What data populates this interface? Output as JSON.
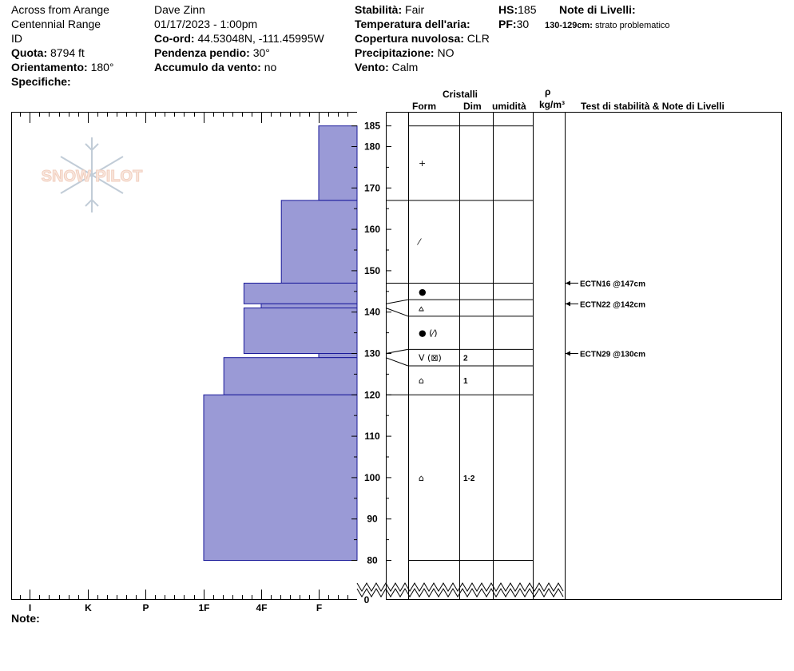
{
  "header": {
    "location_name": "Across from Arange",
    "range": "Centennial Range",
    "state": "ID",
    "elevation_label": "Quota:",
    "elevation_value": "8794 ft",
    "aspect_label": "Orientamento:",
    "aspect_value": "180°",
    "specifics_label": "Specifiche:",
    "observer": "Dave Zinn",
    "datetime": "01/17/2023 - 1:00pm",
    "coord_label": "Co-ord:",
    "coord_value": "44.53048N, -111.45995W",
    "slope_label": "Pendenza pendio:",
    "slope_value": "30°",
    "wind_loading_label": "Accumulo da vento:",
    "wind_loading_value": "no",
    "stability_label": "Stabilità:",
    "stability_value": "Fair",
    "air_temp_label": "Temperatura dell'aria:",
    "cloud_label": "Copertura nuvolosa:",
    "cloud_value": "CLR",
    "precip_label": "Precipitazione:",
    "precip_value": "NO",
    "wind_label": "Vento:",
    "wind_value": "Calm",
    "hs_label": "HS:",
    "hs_value": "185",
    "pf_label": "PF:",
    "pf_value": "30",
    "layer_notes_label": "Note di Livelli:",
    "layer_note_range": "130-129cm:",
    "layer_note_text": "strato problematico"
  },
  "logo_text": "SNOW PILOT",
  "columns": {
    "crystals": "Cristalli",
    "form": "Form",
    "size": "Dim",
    "moisture": "umidità",
    "rho": "ρ",
    "density_unit": "kg/m³",
    "tests": "Test di stabilità & Note di Livelli"
  },
  "hardness_axis": [
    "I",
    "K",
    "P",
    "1F",
    "4F",
    "F"
  ],
  "notes_label": "Note:",
  "depth_axis": {
    "min": 80,
    "max": 185,
    "labeled_ticks": [
      185,
      180,
      170,
      160,
      150,
      140,
      130,
      120,
      110,
      100,
      90,
      80
    ],
    "bottom_label": "0"
  },
  "chart_data": {
    "type": "bar",
    "orientation": "horizontal",
    "xlabel": "",
    "ylabel": "",
    "hardness_scale": [
      "F",
      "4F",
      "1F",
      "P",
      "K",
      "I"
    ],
    "layers": [
      {
        "top": 185,
        "bottom": 167,
        "hardness": "F"
      },
      {
        "top": 167,
        "bottom": 147,
        "hardness": "4F+"
      },
      {
        "top": 147,
        "bottom": 142,
        "hardness": "1F-"
      },
      {
        "top": 142,
        "bottom": 141,
        "hardness": "4F"
      },
      {
        "top": 141,
        "bottom": 130,
        "hardness": "1F-"
      },
      {
        "top": 130,
        "bottom": 129,
        "hardness": "F"
      },
      {
        "top": 129,
        "bottom": 120,
        "hardness": "1F+"
      },
      {
        "top": 120,
        "bottom": 80,
        "hardness": "1F++"
      }
    ],
    "hardness_index": {
      "F": 1,
      "4F+": 1.65,
      "4F": 2,
      "1F-": 2.3,
      "1F": 3,
      "1F+": 2.65,
      "1F++": 3.0
    },
    "bar_color": "#9a9ad6"
  },
  "crystal_layers": [
    {
      "top": 185,
      "bottom": 167,
      "form": "+",
      "size": ""
    },
    {
      "top": 167,
      "bottom": 147,
      "form": "⁄",
      "size": ""
    },
    {
      "top": 147,
      "bottom": 143,
      "form": "●",
      "size": ""
    },
    {
      "top": 143,
      "bottom": 139,
      "form": "⩟",
      "size": ""
    },
    {
      "top": 139,
      "bottom": 131,
      "form": "● (⁄)",
      "size": ""
    },
    {
      "top": 131,
      "bottom": 127,
      "form": "V (⊠)",
      "size": "2"
    },
    {
      "top": 127,
      "bottom": 120,
      "form": "⌂",
      "size": "1"
    },
    {
      "top": 120,
      "bottom": 80,
      "form": "⌂",
      "size": "1-2"
    }
  ],
  "stability_tests": [
    {
      "label": "ECTN16 @147cm",
      "depth": 147
    },
    {
      "label": "ECTN22 @142cm",
      "depth": 142
    },
    {
      "label": "ECTN29 @130cm",
      "depth": 130
    }
  ]
}
